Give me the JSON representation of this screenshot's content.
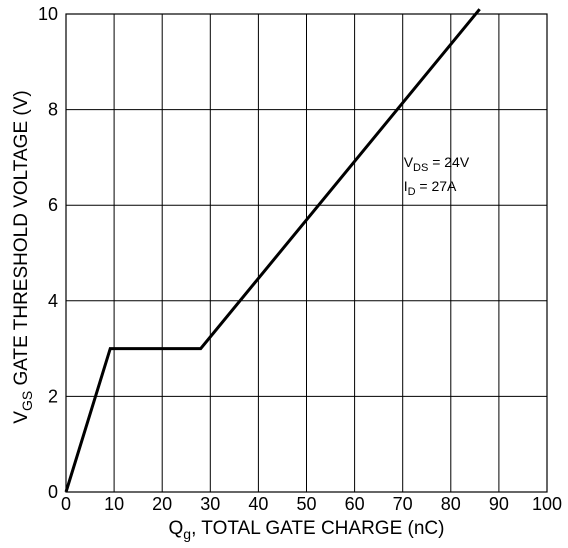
{
  "chart_data": {
    "type": "line",
    "xlabel": {
      "main": "Q",
      "sub": "g",
      "rest": ", TOTAL GATE CHARGE (nC)"
    },
    "ylabel": {
      "main": "V",
      "sub": "GS",
      "rest": " GATE THRESHOLD VOLTAGE (V)"
    },
    "xlim": [
      0,
      100
    ],
    "ylim": [
      0,
      10
    ],
    "x_ticks": [
      0,
      10,
      20,
      30,
      40,
      50,
      60,
      70,
      80,
      90,
      100
    ],
    "y_ticks": [
      0,
      2,
      4,
      6,
      8,
      10
    ],
    "grid": true,
    "series": [
      {
        "x": [
          0,
          9.2,
          28,
          86
        ],
        "y": [
          0,
          3.0,
          3.0,
          10.1
        ]
      }
    ],
    "annotations": [
      {
        "main": "V",
        "sub": "DS",
        "rest": " = 24V",
        "x": 70,
        "y": 6.9
      },
      {
        "main": "I",
        "sub": "D",
        "rest": " = 27A",
        "x": 70,
        "y": 6.4
      }
    ]
  }
}
